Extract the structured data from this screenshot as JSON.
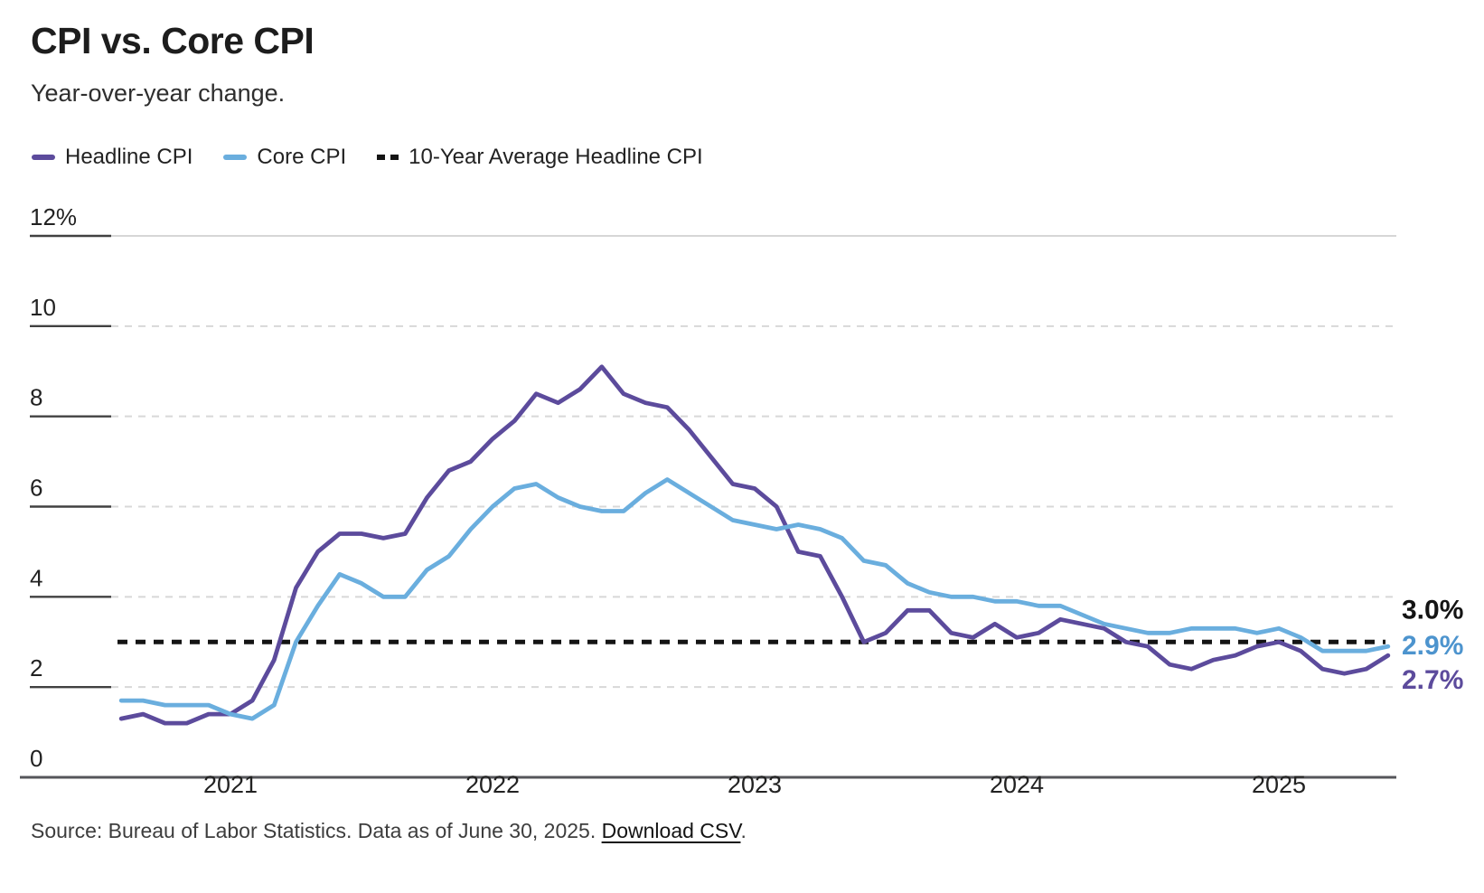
{
  "header": {
    "title": "CPI vs. Core CPI",
    "subtitle": "Year-over-year change."
  },
  "legend": [
    {
      "label": "Headline CPI",
      "color": "#5c4b9c",
      "style": "solid"
    },
    {
      "label": "Core CPI",
      "color": "#6aaede",
      "style": "solid"
    },
    {
      "label": "10-Year Average Headline CPI",
      "color": "#141414",
      "style": "dashed"
    }
  ],
  "footer": {
    "source_text": "Source: Bureau of Labor Statistics. Data as of June 30, 2025.",
    "download_link": "Download CSV",
    "period": "."
  },
  "chart_data": {
    "type": "line",
    "title": "CPI vs. Core CPI",
    "subtitle": "Year-over-year change.",
    "ylim": [
      0,
      12
    ],
    "y_ticks": [
      0,
      2,
      4,
      6,
      8,
      10,
      12
    ],
    "y_tick_labels": [
      "0",
      "2",
      "4",
      "6",
      "8",
      "10",
      "12%"
    ],
    "x_tick_labels": [
      "2021",
      "2022",
      "2023",
      "2024",
      "2025"
    ],
    "grid": "horizontal-dashed",
    "legend_position": "top-left",
    "x_months": [
      "2020-08",
      "2020-09",
      "2020-10",
      "2020-11",
      "2020-12",
      "2021-01",
      "2021-02",
      "2021-03",
      "2021-04",
      "2021-05",
      "2021-06",
      "2021-07",
      "2021-08",
      "2021-09",
      "2021-10",
      "2021-11",
      "2021-12",
      "2022-01",
      "2022-02",
      "2022-03",
      "2022-04",
      "2022-05",
      "2022-06",
      "2022-07",
      "2022-08",
      "2022-09",
      "2022-10",
      "2022-11",
      "2022-12",
      "2023-01",
      "2023-02",
      "2023-03",
      "2023-04",
      "2023-05",
      "2023-06",
      "2023-07",
      "2023-08",
      "2023-09",
      "2023-10",
      "2023-11",
      "2023-12",
      "2024-01",
      "2024-02",
      "2024-03",
      "2024-04",
      "2024-05",
      "2024-06",
      "2024-07",
      "2024-08",
      "2024-09",
      "2024-10",
      "2024-11",
      "2024-12",
      "2025-01",
      "2025-02",
      "2025-03",
      "2025-04",
      "2025-05",
      "2025-06"
    ],
    "series": [
      {
        "name": "Headline CPI",
        "color": "#5c4b9c",
        "values": [
          1.3,
          1.4,
          1.2,
          1.2,
          1.4,
          1.4,
          1.7,
          2.6,
          4.2,
          5.0,
          5.4,
          5.4,
          5.3,
          5.4,
          6.2,
          6.8,
          7.0,
          7.5,
          7.9,
          8.5,
          8.3,
          8.6,
          9.1,
          8.5,
          8.3,
          8.2,
          7.7,
          7.1,
          6.5,
          6.4,
          6.0,
          5.0,
          4.9,
          4.0,
          3.0,
          3.2,
          3.7,
          3.7,
          3.2,
          3.1,
          3.4,
          3.1,
          3.2,
          3.5,
          3.4,
          3.3,
          3.0,
          2.9,
          2.5,
          2.4,
          2.6,
          2.7,
          2.9,
          3.0,
          2.8,
          2.4,
          2.3,
          2.4,
          2.7
        ]
      },
      {
        "name": "Core CPI",
        "color": "#6aaede",
        "values": [
          1.7,
          1.7,
          1.6,
          1.6,
          1.6,
          1.4,
          1.3,
          1.6,
          3.0,
          3.8,
          4.5,
          4.3,
          4.0,
          4.0,
          4.6,
          4.9,
          5.5,
          6.0,
          6.4,
          6.5,
          6.2,
          6.0,
          5.9,
          5.9,
          6.3,
          6.6,
          6.3,
          6.0,
          5.7,
          5.6,
          5.5,
          5.6,
          5.5,
          5.3,
          4.8,
          4.7,
          4.3,
          4.1,
          4.0,
          4.0,
          3.9,
          3.9,
          3.8,
          3.8,
          3.6,
          3.4,
          3.3,
          3.2,
          3.2,
          3.3,
          3.3,
          3.3,
          3.2,
          3.3,
          3.1,
          2.8,
          2.8,
          2.8,
          2.9
        ]
      }
    ],
    "average_line": {
      "name": "10-Year Average Headline CPI",
      "value": 3.0,
      "color": "#141414",
      "style": "dashed"
    },
    "end_labels": [
      {
        "name": "average",
        "text": "3.0%",
        "value": 3.0,
        "color": "#141414"
      },
      {
        "name": "core",
        "text": "2.9%",
        "value": 2.9,
        "color": "#4d94ce"
      },
      {
        "name": "headline",
        "text": "2.7%",
        "value": 2.7,
        "color": "#5c4b9c"
      }
    ]
  }
}
